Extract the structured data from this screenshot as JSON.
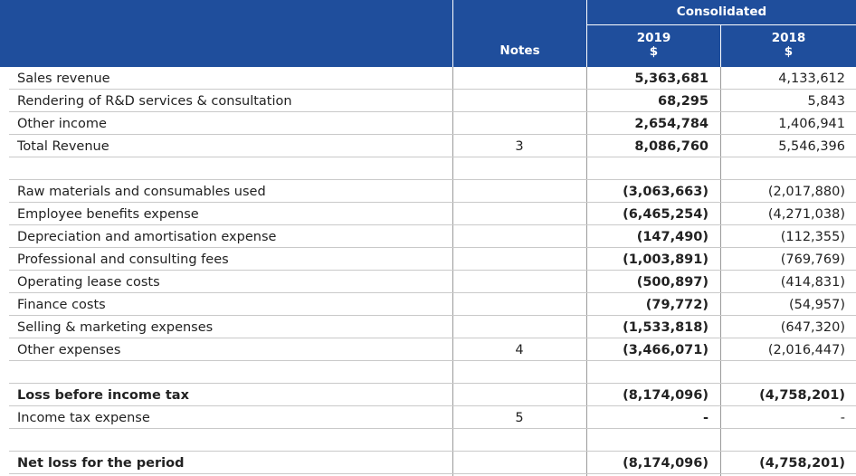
{
  "header": {
    "group_label": "Consolidated",
    "notes_label": "Notes",
    "col_2019_year": "2019",
    "col_2019_unit": "$",
    "col_2018_year": "2018",
    "col_2018_unit": "$"
  },
  "rows": [
    {
      "label": "Sales revenue",
      "note": "",
      "y2019": "5,363,681",
      "y2018": "4,133,612",
      "bold": false
    },
    {
      "label": "Rendering of R&D services & consultation",
      "note": "",
      "y2019": "68,295",
      "y2018": "5,843",
      "bold": false
    },
    {
      "label": "Other income",
      "note": "",
      "y2019": "2,654,784",
      "y2018": "1,406,941",
      "bold": false
    },
    {
      "label": "Total Revenue",
      "note": "3",
      "y2019": "8,086,760",
      "y2018": "5,546,396",
      "bold": false
    },
    {
      "label": "",
      "note": "",
      "y2019": "",
      "y2018": "",
      "bold": false
    },
    {
      "label": "Raw materials and consumables used",
      "note": "",
      "y2019": "(3,063,663)",
      "y2018": "(2,017,880)",
      "bold": false
    },
    {
      "label": "Employee benefits expense",
      "note": "",
      "y2019": "(6,465,254)",
      "y2018": "(4,271,038)",
      "bold": false
    },
    {
      "label": "Depreciation and amortisation expense",
      "note": "",
      "y2019": "(147,490)",
      "y2018": "(112,355)",
      "bold": false
    },
    {
      "label": "Professional and consulting fees",
      "note": "",
      "y2019": "(1,003,891)",
      "y2018": "(769,769)",
      "bold": false
    },
    {
      "label": "Operating lease costs",
      "note": "",
      "y2019": "(500,897)",
      "y2018": "(414,831)",
      "bold": false
    },
    {
      "label": "Finance costs",
      "note": "",
      "y2019": "(79,772)",
      "y2018": "(54,957)",
      "bold": false
    },
    {
      "label": "Selling & marketing expenses",
      "note": "",
      "y2019": "(1,533,818)",
      "y2018": "(647,320)",
      "bold": false
    },
    {
      "label": "Other expenses",
      "note": "4",
      "y2019": "(3,466,071)",
      "y2018": "(2,016,447)",
      "bold": false
    },
    {
      "label": "",
      "note": "",
      "y2019": "",
      "y2018": "",
      "bold": false
    },
    {
      "label": "Loss before income tax",
      "note": "",
      "y2019": "(8,174,096)",
      "y2018": "(4,758,201)",
      "bold": true
    },
    {
      "label": "Income tax expense",
      "note": "5",
      "y2019": "-",
      "y2018": "-",
      "bold": false
    },
    {
      "label": "",
      "note": "",
      "y2019": "",
      "y2018": "",
      "bold": false
    },
    {
      "label": "Net loss for the period",
      "note": "",
      "y2019": "(8,174,096)",
      "y2018": "(4,758,201)",
      "bold": true
    }
  ]
}
